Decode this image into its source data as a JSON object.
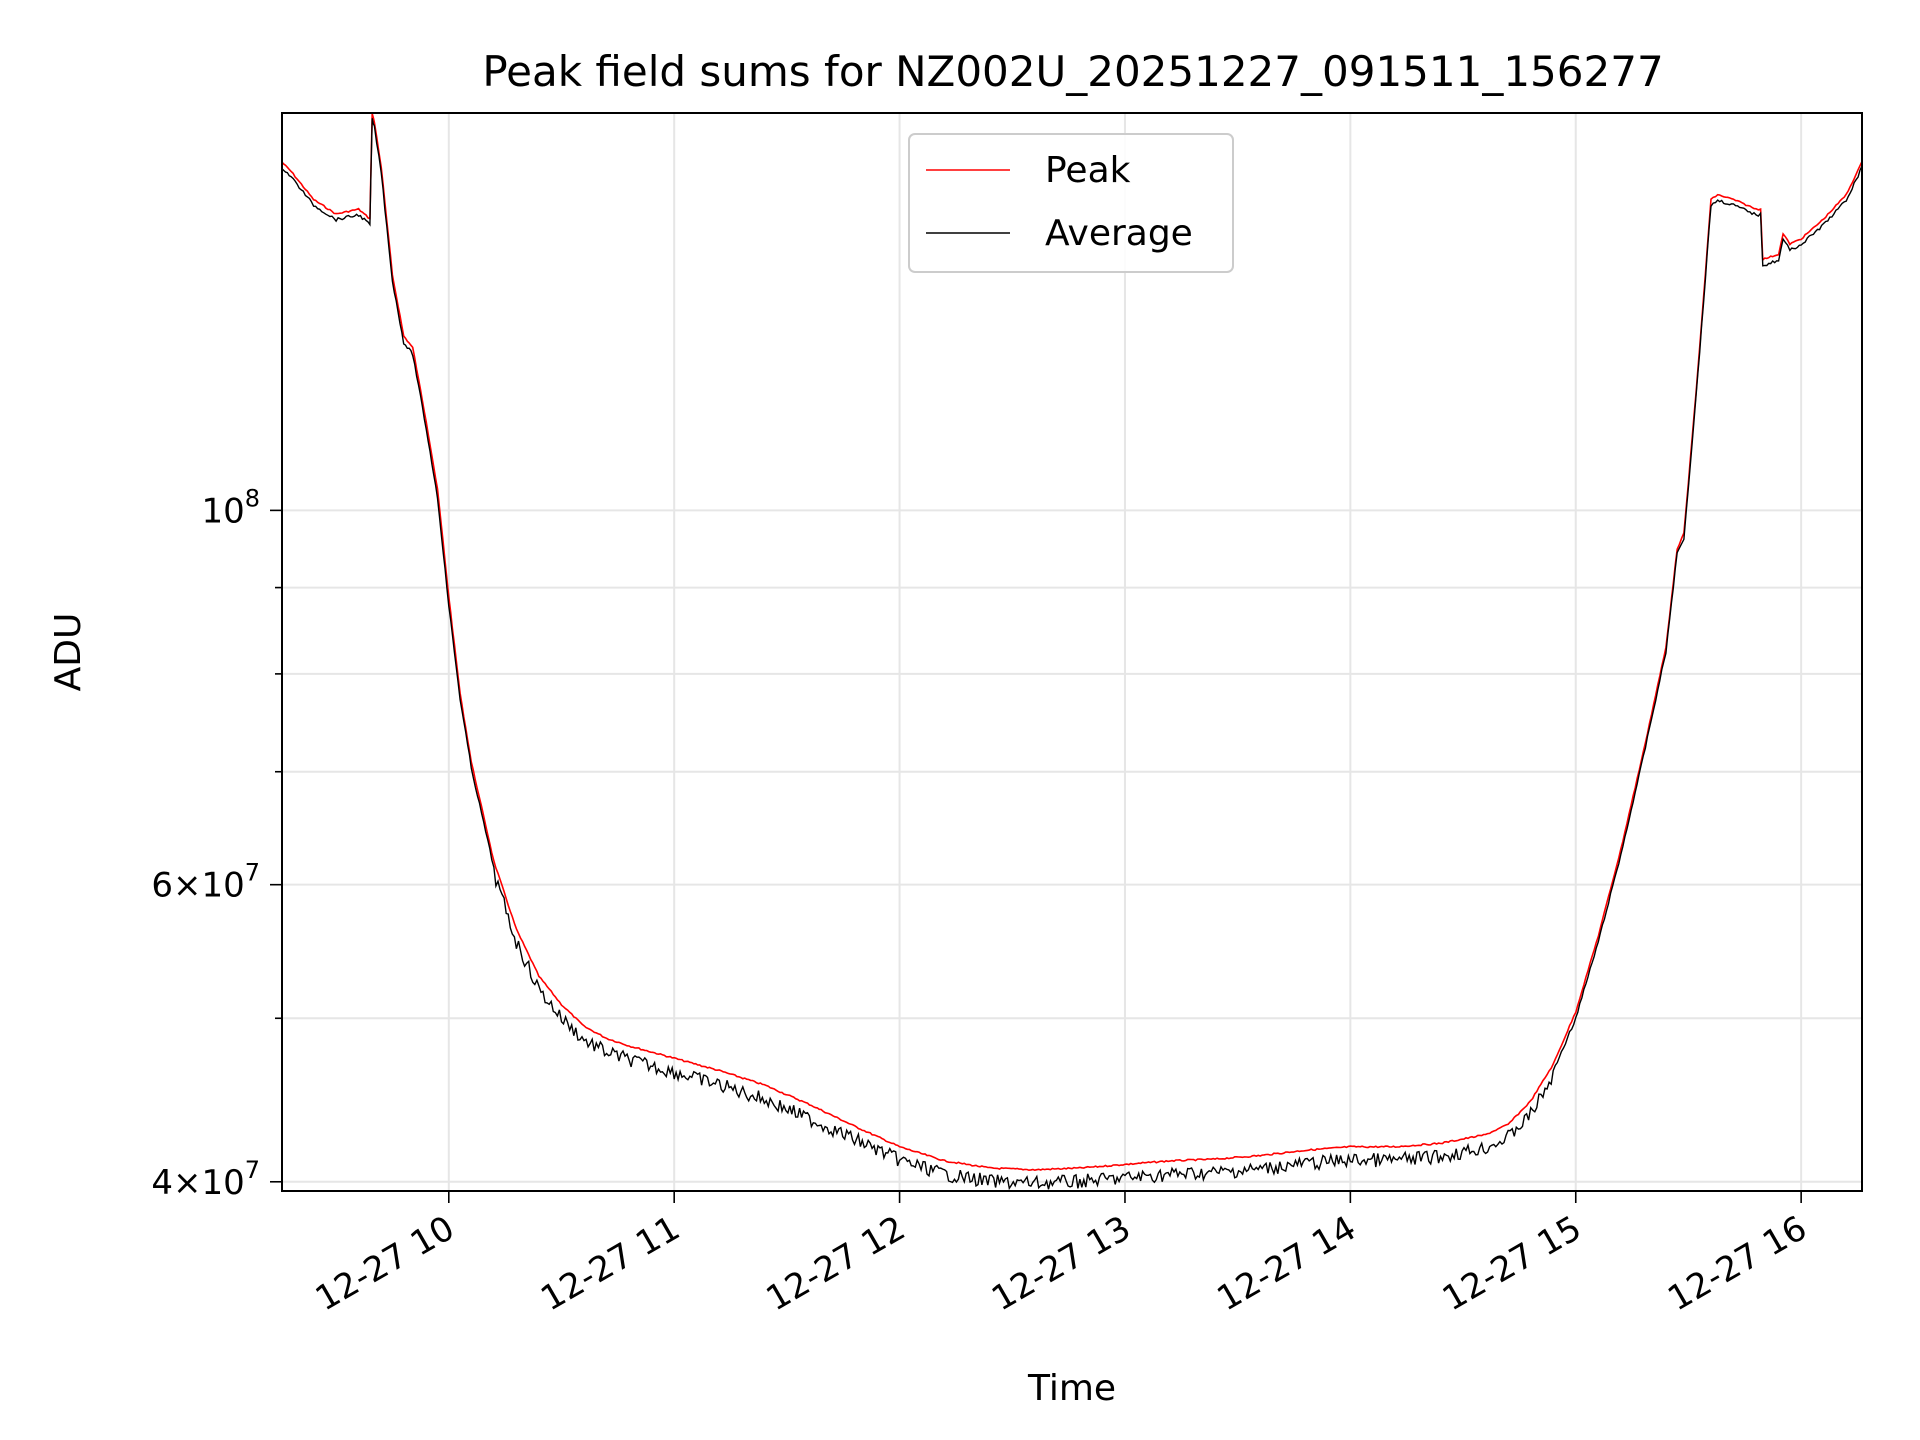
{
  "chart_data": {
    "type": "line",
    "title": "Peak field sums for NZ002U_20251227_091511_156277",
    "xlabel": "Time",
    "ylabel": "ADU",
    "y_scale": "log",
    "ylim": [
      39500000,
      172000000
    ],
    "xlim_hours": [
      9.26,
      16.27
    ],
    "grid": true,
    "legend_position": "upper center",
    "x_ticks": [
      {
        "value": 10,
        "label": "12-27 10"
      },
      {
        "value": 11,
        "label": "12-27 11"
      },
      {
        "value": 12,
        "label": "12-27 12"
      },
      {
        "value": 13,
        "label": "12-27 13"
      },
      {
        "value": 14,
        "label": "12-27 14"
      },
      {
        "value": 15,
        "label": "12-27 15"
      },
      {
        "value": 16,
        "label": "12-27 16"
      }
    ],
    "y_major_ticks": [
      {
        "value": 40000000,
        "mantissa": "4",
        "exp": "7"
      },
      {
        "value": 60000000,
        "mantissa": "6",
        "exp": "7"
      },
      {
        "value": 100000000,
        "mantissa": "",
        "exp": "8"
      }
    ],
    "y_minor_ticks": [
      50000000,
      70000000,
      80000000,
      90000000
    ],
    "series": [
      {
        "name": "Peak",
        "color": "#ff0000",
        "x_hours": [
          9.26,
          9.3,
          9.4,
          9.5,
          9.6,
          9.65,
          9.66,
          9.67,
          9.7,
          9.75,
          9.8,
          9.84,
          9.9,
          9.95,
          10.0,
          10.05,
          10.1,
          10.2,
          10.3,
          10.4,
          10.5,
          10.6,
          10.7,
          10.8,
          11.0,
          11.2,
          11.4,
          11.6,
          11.8,
          12.0,
          12.2,
          12.4,
          12.6,
          12.8,
          13.0,
          13.2,
          13.4,
          13.6,
          13.8,
          14.0,
          14.2,
          14.4,
          14.6,
          14.7,
          14.8,
          14.9,
          15.0,
          15.1,
          15.2,
          15.3,
          15.4,
          15.45,
          15.48,
          15.5,
          15.55,
          15.6,
          15.63,
          15.7,
          15.8,
          15.82,
          15.83,
          15.9,
          15.92,
          15.95,
          16.0,
          16.1,
          16.2,
          16.27
        ],
        "values": [
          161000000,
          159000000,
          153000000,
          150000000,
          151000000,
          149000000,
          172000000,
          170000000,
          160000000,
          138000000,
          127000000,
          125000000,
          113000000,
          103000000,
          89000000,
          78000000,
          71000000,
          62000000,
          56500000,
          53000000,
          51000000,
          49500000,
          48700000,
          48200000,
          47400000,
          46600000,
          45700000,
          44500000,
          43200000,
          42000000,
          41200000,
          40800000,
          40700000,
          40800000,
          41000000,
          41200000,
          41300000,
          41500000,
          41800000,
          42000000,
          42000000,
          42200000,
          42700000,
          43300000,
          44700000,
          47000000,
          50500000,
          56000000,
          63000000,
          72000000,
          83000000,
          95000000,
          97000000,
          104000000,
          125000000,
          153000000,
          154000000,
          153000000,
          151000000,
          151000000,
          141000000,
          142000000,
          146000000,
          144000000,
          145000000,
          149000000,
          154000000,
          161000000
        ]
      },
      {
        "name": "Average",
        "color": "#000000",
        "x_hours": [
          9.26,
          9.3,
          9.4,
          9.5,
          9.6,
          9.65,
          9.66,
          9.67,
          9.7,
          9.75,
          9.8,
          9.84,
          9.9,
          9.95,
          10.0,
          10.05,
          10.1,
          10.2,
          10.3,
          10.4,
          10.5,
          10.6,
          10.7,
          10.8,
          11.0,
          11.2,
          11.4,
          11.6,
          11.8,
          12.0,
          12.2,
          12.4,
          12.6,
          12.8,
          13.0,
          13.2,
          13.4,
          13.6,
          13.8,
          14.0,
          14.2,
          14.4,
          14.6,
          14.7,
          14.8,
          14.9,
          15.0,
          15.1,
          15.2,
          15.3,
          15.4,
          15.45,
          15.48,
          15.5,
          15.55,
          15.6,
          15.63,
          15.7,
          15.8,
          15.82,
          15.83,
          15.9,
          15.92,
          15.95,
          16.0,
          16.1,
          16.2,
          16.27
        ],
        "values": [
          160000000,
          158000000,
          152000000,
          149000000,
          150000000,
          148000000,
          171000000,
          169000000,
          159000000,
          137000000,
          126000000,
          124000000,
          112000000,
          102000000,
          88000000,
          77500000,
          70500000,
          61500000,
          56000000,
          52500000,
          50500000,
          49000000,
          48200000,
          47700000,
          46900000,
          46100000,
          45200000,
          44000000,
          42800000,
          41600000,
          40800000,
          40400000,
          40300000,
          40400000,
          40600000,
          40800000,
          40900000,
          41100000,
          41400000,
          41600000,
          41600000,
          41800000,
          42300000,
          42900000,
          44300000,
          46600000,
          50100000,
          55600000,
          62600000,
          71600000,
          82600000,
          94500000,
          96500000,
          103500000,
          124500000,
          152000000,
          153000000,
          152000000,
          150000000,
          150000000,
          140000000,
          141000000,
          145000000,
          143000000,
          144000000,
          148000000,
          153000000,
          160000000
        ]
      }
    ]
  }
}
